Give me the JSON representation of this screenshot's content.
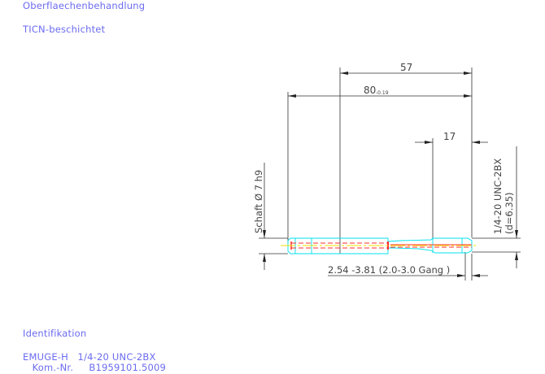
{
  "header": {
    "surface_label": "Oberflaechenbehandlung",
    "surface_value": "TICN-beschichtet"
  },
  "drawing": {
    "dim_57": "57",
    "dim_80": "80",
    "dim_80_tol": "-0.19",
    "dim_17": "17",
    "shaft_label": "Schaft Ø 7 h9",
    "thread_label": "1/4-20 UNC-2BX",
    "thread_d": "(d=6.35)",
    "chamfer_label": "2.54 -3.81 (2.0-3.0 Gang  )",
    "colors": {
      "outline": "#00e5f0",
      "center": "#f0e000",
      "hidden": "#ff3030",
      "dimension": "#333333",
      "text": "#6b6bf0"
    }
  },
  "footer": {
    "ident_label": "Identifikation",
    "ident_line1": "EMUGE-H   1/4-20 UNC-2BX",
    "ident_line2": "   Kom.-Nr.     B1959101.5009"
  }
}
